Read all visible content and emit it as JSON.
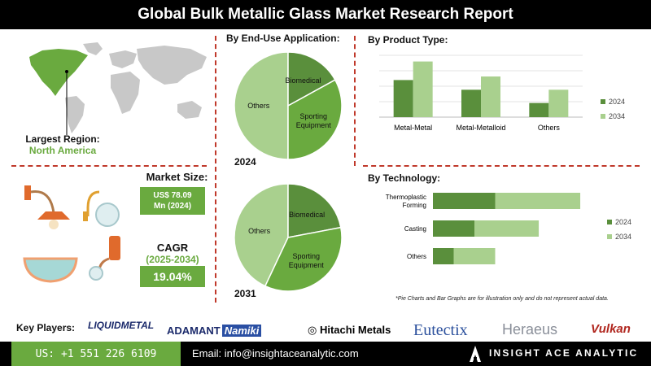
{
  "header": {
    "title": "Global Bulk Metallic Glass Market Research Report"
  },
  "region": {
    "label": "Largest Region:",
    "value": "North America"
  },
  "market_size": {
    "label": "Market Size:",
    "value_line1": "US$ 78.09",
    "value_line2": "Mn (2024)"
  },
  "cagr": {
    "label": "CAGR",
    "years": "(2025-2034)",
    "value": "19.04%"
  },
  "end_use": {
    "title": "By End-Use Application:",
    "year_top": "2024",
    "year_bottom": "2031"
  },
  "product_type": {
    "title": "By Product Type:"
  },
  "technology": {
    "title": "By Technology:"
  },
  "disclaimer": "*Pie Charts and Bar Graphs are for illustration only and do not represent actual data.",
  "key_players": {
    "label": "Key Players:",
    "logos": [
      "LIQUIDMETAL",
      "ADAMANT",
      "Namiki",
      "Hitachi Metals",
      "Eutectix",
      "Heraeus",
      "Vulkan"
    ]
  },
  "footer": {
    "phone": "US: +1 551 226 6109",
    "email": "Email: info@insightaceanalytic.com",
    "brand": "INSIGHT ACE ANALYTIC"
  },
  "colors": {
    "dark_green": "#5a8f3c",
    "light_green": "#a9d08e",
    "mid_green": "#6aaa3f",
    "separator": "#c0392b"
  },
  "chart_data": [
    {
      "type": "pie",
      "title": "By End-Use Application: 2024",
      "slices": [
        {
          "label": "Others",
          "value": 50
        },
        {
          "label": "Biomedical",
          "value": 17
        },
        {
          "label": "Sporting Equipment",
          "value": 33
        }
      ]
    },
    {
      "type": "pie",
      "title": "By End-Use Application: 2031",
      "slices": [
        {
          "label": "Others",
          "value": 43
        },
        {
          "label": "Biomedical",
          "value": 22
        },
        {
          "label": "Sporting Equipment",
          "value": 35
        }
      ]
    },
    {
      "type": "bar",
      "title": "By Product Type:",
      "categories": [
        "Metal-Metal",
        "Metal-Metalloid",
        "Others"
      ],
      "series": [
        {
          "name": "2024",
          "values": [
            42,
            31,
            16
          ]
        },
        {
          "name": "2034",
          "values": [
            63,
            46,
            31
          ]
        }
      ],
      "ylim": [
        0,
        70
      ],
      "legend": "right"
    },
    {
      "type": "bar",
      "orientation": "horizontal-stacked",
      "title": "By Technology:",
      "categories": [
        "Thermoplastic Forming",
        "Casting",
        "Others"
      ],
      "series": [
        {
          "name": "2024",
          "values": [
            30,
            20,
            10
          ]
        },
        {
          "name": "2034",
          "values": [
            41,
            31,
            20
          ]
        }
      ],
      "xlim": [
        0,
        80
      ],
      "legend": "right"
    }
  ]
}
